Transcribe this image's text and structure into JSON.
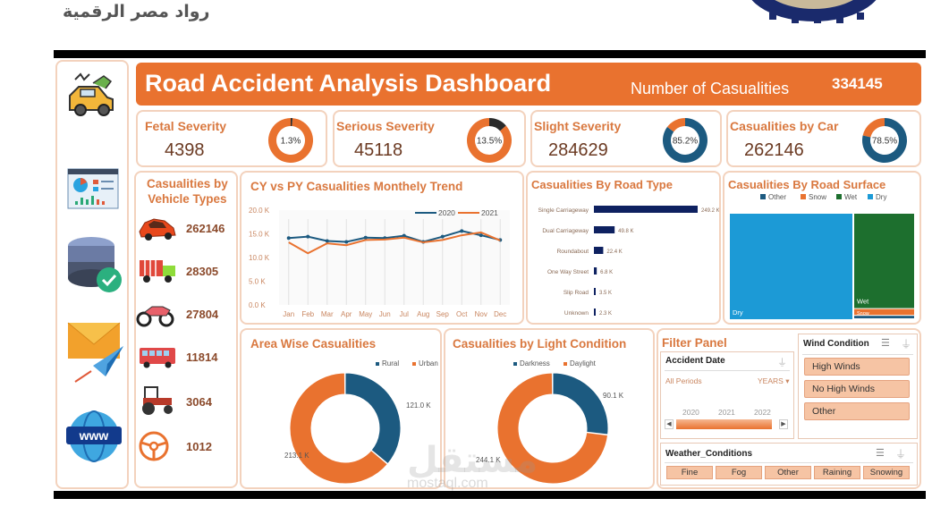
{
  "brand": {
    "arabic_text": "رواد مصر الرقمية"
  },
  "header": {
    "title": "Road Accident Analysis Dashboard",
    "total_label": "Number of Casualities",
    "total_value": "334145"
  },
  "sidebar": {
    "icons": [
      "accident-icon",
      "dashboard-icon",
      "database-check-icon",
      "email-send-icon",
      "www-globe-icon"
    ]
  },
  "kpis": [
    {
      "label": "Fetal Severity",
      "value": "4398",
      "pct_label": "1.3%",
      "pct": 1.3,
      "ring": "#e9722f",
      "accent": "#2a2a2a"
    },
    {
      "label": "Serious Severity",
      "value": "45118",
      "pct_label": "13.5%",
      "pct": 13.5,
      "ring": "#e9722f",
      "accent": "#2a2a2a"
    },
    {
      "label": "Slight Severity",
      "value": "284629",
      "pct_label": "85.2%",
      "pct": 85.2,
      "ring": "#e9722f",
      "accent": "#1c5a80"
    },
    {
      "label": "Casualities by Car",
      "value": "262146",
      "pct_label": "78.5%",
      "pct": 78.5,
      "ring": "#e9722f",
      "accent": "#1c5a80"
    }
  ],
  "vehicles": {
    "title_line1": "Casualities by",
    "title_line2": "Vehicle Types",
    "items": [
      {
        "icon": "car-icon",
        "value": "262146"
      },
      {
        "icon": "truck-icon",
        "value": "28305"
      },
      {
        "icon": "motorcycle-icon",
        "value": "27804"
      },
      {
        "icon": "bus-icon",
        "value": "11814"
      },
      {
        "icon": "tractor-icon",
        "value": "3064"
      },
      {
        "icon": "steering-wheel-icon",
        "value": "1012"
      }
    ]
  },
  "colors": {
    "orange": "#e9722f",
    "navy": "#1c5a80",
    "dark_navy": "#0e2160",
    "bright_blue": "#1c9ad6",
    "green": "#1d6f2e",
    "title_orange": "#d9783f"
  },
  "chart_data": [
    {
      "id": "monthly-trend",
      "type": "line",
      "title": "CY vs PY Casualities Monthely Trend",
      "categories": [
        "Jan",
        "Feb",
        "Mar",
        "Apr",
        "May",
        "Jun",
        "Jul",
        "Aug",
        "Sep",
        "Oct",
        "Nov",
        "Dec"
      ],
      "series": [
        {
          "name": "2020",
          "color": "#1c5a80",
          "values": [
            14.1,
            14.4,
            13.5,
            13.3,
            14.2,
            14.1,
            14.6,
            13.3,
            14.4,
            15.6,
            14.7,
            13.7
          ]
        },
        {
          "name": "2021",
          "color": "#e9722f",
          "values": [
            13.2,
            10.9,
            13.0,
            12.6,
            13.7,
            13.8,
            14.2,
            13.2,
            13.7,
            14.7,
            15.3,
            13.6
          ]
        }
      ],
      "yticks": [
        "0.0 K",
        "5.0 K",
        "10.0 K",
        "15.0 K",
        "20.0 K"
      ],
      "ylim": [
        0,
        20
      ],
      "unit": "K",
      "legend": "top-right",
      "grid": true
    },
    {
      "id": "road-type",
      "type": "bar",
      "orientation": "horizontal",
      "title": "Casualities By Road Type",
      "categories": [
        "Single Carriageway",
        "Dual Carriageway",
        "Roundabout",
        "One Way Street",
        "Slip Road",
        "Unknown"
      ],
      "values": [
        249.2,
        49.8,
        22.4,
        6.8,
        3.5,
        2.3
      ],
      "labels": [
        "249.2 K",
        "49.8 K",
        "22.4 K",
        "6.8 K",
        "3.5 K",
        "2.3 K"
      ],
      "color": "#0e2160"
    },
    {
      "id": "road-surface",
      "type": "treemap",
      "title": "Casualities By Road Surface",
      "legend": [
        {
          "name": "Other",
          "color": "#1c5a80"
        },
        {
          "name": "Snow",
          "color": "#e9722f"
        },
        {
          "name": "Wet",
          "color": "#1d6f2e"
        },
        {
          "name": "Dry",
          "color": "#1c9ad6"
        }
      ],
      "values": [
        {
          "name": "Dry",
          "share": 0.67,
          "color": "#1c9ad6"
        },
        {
          "name": "Wet",
          "share": 0.28,
          "color": "#1d6f2e"
        },
        {
          "name": "Snow",
          "share": 0.02,
          "color": "#e9722f"
        },
        {
          "name": "Other",
          "share": 0.01,
          "color": "#1c5a80"
        }
      ]
    },
    {
      "id": "area-wise",
      "type": "pie",
      "donut": true,
      "title": "Area Wise Casualities",
      "legend_entries": [
        "Rural",
        "Urban"
      ],
      "slices": [
        {
          "name": "Rural",
          "value": 121.0,
          "label": "121.0 K",
          "color": "#1c5a80"
        },
        {
          "name": "Urban",
          "value": 213.1,
          "label": "213.1 K",
          "color": "#e9722f"
        }
      ]
    },
    {
      "id": "light-condition",
      "type": "pie",
      "donut": true,
      "title": "Casualities by Light Condition",
      "legend_entries": [
        "Darkness",
        "Daylight"
      ],
      "slices": [
        {
          "name": "Darkness",
          "value": 90.1,
          "label": "90.1 K",
          "color": "#1c5a80"
        },
        {
          "name": "Daylight",
          "value": 244.1,
          "label": "244.1 K",
          "color": "#e9722f"
        }
      ]
    }
  ],
  "filter_panel": {
    "title": "Filter Panel",
    "accident_date": {
      "title": "Accident Date",
      "period_label": "All Periods",
      "granularity": "YEARS",
      "years": [
        "2020",
        "2021",
        "2022"
      ]
    },
    "wind": {
      "title": "Wind Condition",
      "options": [
        "High Winds",
        "No High Winds",
        "Other"
      ]
    },
    "weather": {
      "title": "Weather_Conditions",
      "options": [
        "Fine",
        "Fog",
        "Other",
        "Raining",
        "Snowing"
      ]
    }
  },
  "watermark": {
    "arabic": "مستقل",
    "url": "mostaql.com"
  }
}
